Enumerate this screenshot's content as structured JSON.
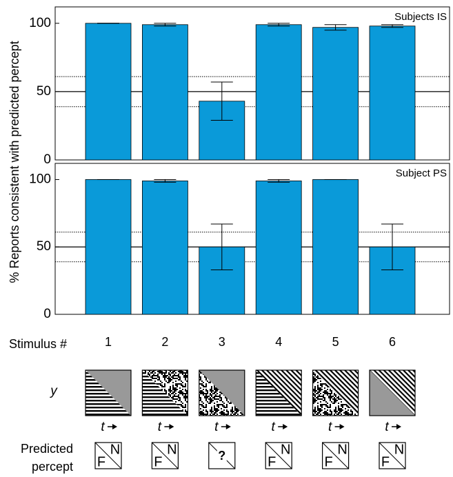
{
  "chart_data": [
    {
      "type": "bar",
      "annotation": "Subjects IS",
      "ylabel": "% Reports consistent with predicted percept",
      "series": [
        {
          "color": "#0a9ad9",
          "values": [
            100,
            99,
            43,
            99,
            97,
            98
          ],
          "errors": [
            0,
            1,
            14,
            1,
            2,
            1
          ]
        }
      ],
      "ylim": [
        0,
        112
      ],
      "yticks": [
        0,
        50,
        100
      ],
      "hlines": [
        {
          "value": 50,
          "style": "solid"
        },
        {
          "value": 61,
          "style": "dotted"
        },
        {
          "value": 39,
          "style": "dotted"
        }
      ]
    },
    {
      "type": "bar",
      "annotation": "Subject PS",
      "series": [
        {
          "color": "#0a9ad9",
          "values": [
            100,
            99,
            50,
            99,
            100,
            50
          ],
          "errors": [
            0,
            1,
            17,
            1,
            0,
            17
          ]
        }
      ],
      "ylim": [
        0,
        112
      ],
      "yticks": [
        0,
        50,
        100
      ],
      "hlines": [
        {
          "value": 50,
          "style": "solid"
        },
        {
          "value": 61,
          "style": "dotted"
        },
        {
          "value": 39,
          "style": "dotted"
        }
      ]
    }
  ],
  "stimuli": {
    "label": "Stimulus #",
    "categories": [
      "1",
      "2",
      "3",
      "4",
      "5",
      "6"
    ],
    "y_label": "y",
    "t_label": "t",
    "predicted_label": [
      "Predicted",
      "percept"
    ],
    "predicted": [
      [
        "N",
        "F"
      ],
      [
        "N",
        "F"
      ],
      [
        "?"
      ],
      [
        "N",
        "F"
      ],
      [
        "N",
        "F"
      ],
      [
        "N",
        "F"
      ]
    ]
  }
}
